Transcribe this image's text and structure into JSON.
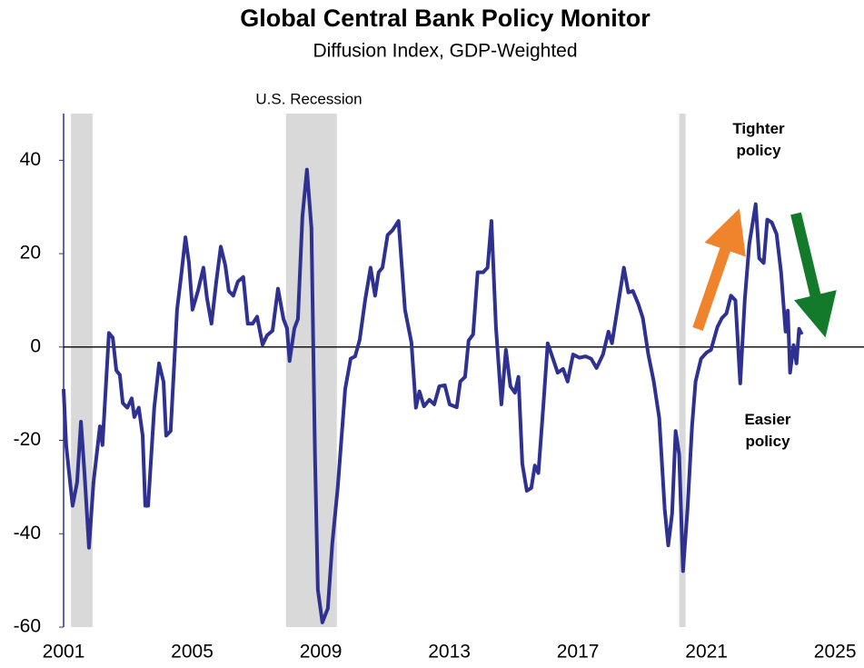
{
  "chart_data": {
    "type": "line",
    "title": "Global Central Bank Policy Monitor",
    "subtitle": "Diffusion Index, GDP-Weighted",
    "annotations": [
      "U.S. Recession",
      "Tighter policy",
      "Easier policy"
    ],
    "recessions": [
      [
        2001.23,
        2001.9
      ],
      [
        2007.92,
        2009.5
      ],
      [
        2020.15,
        2020.35
      ]
    ],
    "xlim": [
      2001,
      2025.9
    ],
    "xticks": [
      2001,
      2005,
      2009,
      2013,
      2017,
      2021,
      2025
    ],
    "ylim": [
      -60,
      50
    ],
    "yticks": [
      -60,
      -40,
      -20,
      0,
      20,
      40
    ],
    "x": [
      2001.0,
      2001.08,
      2001.28,
      2001.42,
      2001.54,
      2001.65,
      2001.79,
      2001.93,
      2002.13,
      2002.21,
      2002.41,
      2002.53,
      2002.64,
      2002.75,
      2002.84,
      2002.98,
      2003.12,
      2003.2,
      2003.34,
      2003.46,
      2003.54,
      2003.63,
      2003.82,
      2003.97,
      2004.11,
      2004.19,
      2004.33,
      2004.53,
      2004.67,
      2004.79,
      2004.9,
      2005.01,
      2005.18,
      2005.35,
      2005.46,
      2005.6,
      2005.75,
      2005.89,
      2006.03,
      2006.14,
      2006.28,
      2006.42,
      2006.59,
      2006.73,
      2006.88,
      2007.02,
      2007.19,
      2007.33,
      2007.5,
      2007.67,
      2007.84,
      2007.95,
      2008.03,
      2008.18,
      2008.29,
      2008.43,
      2008.57,
      2008.71,
      2008.82,
      2008.91,
      2009.05,
      2009.22,
      2009.36,
      2009.53,
      2009.76,
      2009.93,
      2010.07,
      2010.21,
      2010.38,
      2010.55,
      2010.69,
      2010.8,
      2010.92,
      2011.08,
      2011.23,
      2011.42,
      2011.62,
      2011.82,
      2011.96,
      2012.07,
      2012.21,
      2012.38,
      2012.53,
      2012.69,
      2012.86,
      2013.01,
      2013.23,
      2013.34,
      2013.49,
      2013.6,
      2013.74,
      2013.88,
      2014.05,
      2014.19,
      2014.31,
      2014.45,
      2014.62,
      2014.76,
      2014.9,
      2015.04,
      2015.15,
      2015.27,
      2015.41,
      2015.55,
      2015.66,
      2015.77,
      2015.92,
      2016.06,
      2016.2,
      2016.37,
      2016.54,
      2016.68,
      2016.85,
      2017.05,
      2017.24,
      2017.41,
      2017.58,
      2017.78,
      2017.95,
      2018.06,
      2018.23,
      2018.43,
      2018.57,
      2018.71,
      2018.88,
      2019.02,
      2019.19,
      2019.36,
      2019.53,
      2019.7,
      2019.81,
      2019.93,
      2020.04,
      2020.15,
      2020.27,
      2020.41,
      2020.55,
      2020.66,
      2020.83,
      2021.0,
      2021.14,
      2021.34,
      2021.48,
      2021.62,
      2021.76,
      2021.9,
      2022.05,
      2022.19,
      2022.33,
      2022.53,
      2022.64,
      2022.78,
      2022.89,
      2023.03,
      2023.18,
      2023.32,
      2023.46,
      2023.53,
      2023.6,
      2023.71,
      2023.8,
      2023.88,
      2023.97
    ],
    "series": [
      {
        "color": "#2e3192",
        "values": [
          -9,
          -21,
          -34,
          -29,
          -16,
          -27,
          -43,
          -29,
          -17,
          -21,
          3,
          2,
          -5,
          -6,
          -12,
          -13,
          -11,
          -15,
          -13,
          -19,
          -34,
          -34,
          -13,
          -3.5,
          -7.5,
          -19,
          -18,
          8,
          16,
          23.5,
          18,
          8,
          12,
          17,
          10.5,
          5,
          14,
          21.5,
          17.5,
          12,
          11,
          14,
          15,
          5,
          5,
          6.5,
          0.5,
          2.5,
          3.5,
          12.5,
          6,
          4,
          -3,
          4,
          6,
          28,
          38,
          25.5,
          -23,
          -52,
          -59,
          -56,
          -42,
          -30,
          -9,
          -2.5,
          -2,
          1.5,
          10,
          17,
          11,
          16,
          17,
          24,
          25,
          27,
          8,
          1,
          -13,
          -9.5,
          -12.7,
          -11.3,
          -12.3,
          -8.4,
          -8.2,
          -12.3,
          -12.9,
          -7.4,
          -6.4,
          1.4,
          2.7,
          16,
          16,
          17,
          27,
          4.3,
          -12.3,
          -0.6,
          -8.4,
          -9.8,
          -6.4,
          -25,
          -30.8,
          -30.2,
          -25.4,
          -27,
          -13,
          0.8,
          -2,
          -5.5,
          -4.7,
          -7.4,
          -1.6,
          -2.3,
          -2,
          -2.5,
          -4.5,
          -1.6,
          3.3,
          0.8,
          8.2,
          17,
          11.7,
          12,
          9.2,
          6.2,
          -1.6,
          -7.4,
          -15.2,
          -34.7,
          -42.5,
          -35.7,
          -18,
          -23,
          -48,
          -34.7,
          -17,
          -7.4,
          -2.5,
          -1.2,
          -0.6,
          4.3,
          6.2,
          7.2,
          11,
          10,
          -7.8,
          10,
          22,
          30.6,
          19,
          18,
          27.3,
          26.7,
          24.2,
          16,
          3.3,
          7.8,
          -5.5,
          0.4,
          -3.5,
          3.9,
          2.7
        ]
      }
    ]
  }
}
